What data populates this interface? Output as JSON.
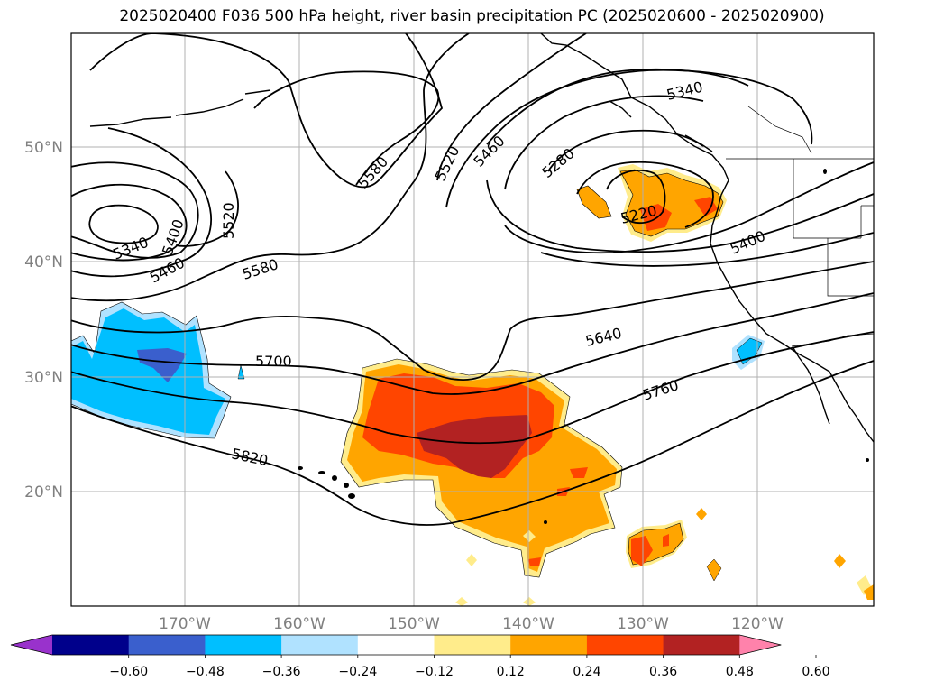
{
  "title": "2025020400 F036 500 hPa height, river basin precipitation PC (2025020600 - 2025020900)",
  "lat_labels": [
    "50°N",
    "40°N",
    "30°N",
    "20°N"
  ],
  "lon_labels": [
    "170°W",
    "160°W",
    "150°W",
    "140°W",
    "130°W",
    "120°W"
  ],
  "contour_labels": [
    "5340",
    "5400",
    "5460",
    "5520",
    "5580",
    "5580",
    "5700",
    "5820",
    "5520",
    "5460",
    "5280",
    "5340",
    "5220",
    "5400",
    "5640",
    "5760"
  ],
  "colorbar": {
    "ticks": [
      "−0.60",
      "−0.48",
      "−0.36",
      "−0.24",
      "−0.12",
      "0.12",
      "0.24",
      "0.36",
      "0.48",
      "0.60"
    ],
    "colors": [
      "#9932cc",
      "#00008b",
      "#3a5fcd",
      "#00bfff",
      "#b0e2ff",
      "#ffffff",
      "#ffec8b",
      "#ffa500",
      "#ff4500",
      "#b22222",
      "#ff82ab"
    ]
  }
}
